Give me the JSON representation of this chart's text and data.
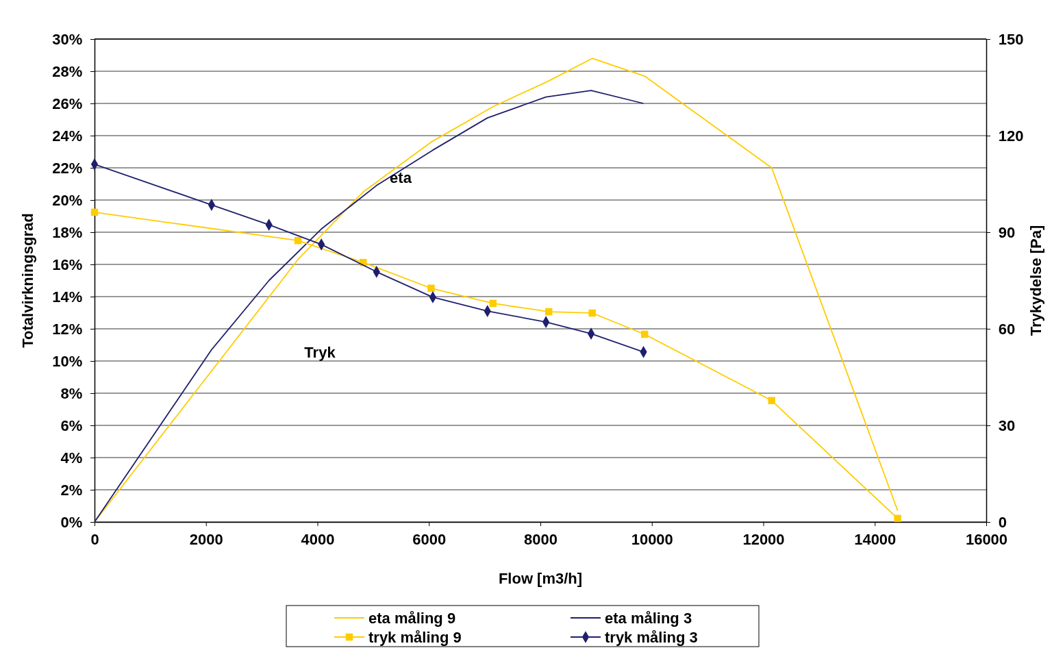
{
  "chart_data": {
    "type": "line",
    "xlabel": "Flow [m3/h]",
    "ylabel": "Totalvirkningsgrad",
    "y2label": "Trykydelse [Pa]",
    "xlim": [
      0,
      16000
    ],
    "xticks": [
      0,
      2000,
      4000,
      6000,
      8000,
      10000,
      12000,
      14000,
      16000
    ],
    "ylim": [
      0,
      30
    ],
    "yticks": [
      {
        "value": 0,
        "label": "0%"
      },
      {
        "value": 2,
        "label": "2%"
      },
      {
        "value": 4,
        "label": "4%"
      },
      {
        "value": 6,
        "label": "6%"
      },
      {
        "value": 8,
        "label": "8%"
      },
      {
        "value": 10,
        "label": "10%"
      },
      {
        "value": 12,
        "label": "12%"
      },
      {
        "value": 14,
        "label": "14%"
      },
      {
        "value": 16,
        "label": "16%"
      },
      {
        "value": 18,
        "label": "18%"
      },
      {
        "value": 20,
        "label": "20%"
      },
      {
        "value": 22,
        "label": "22%"
      },
      {
        "value": 24,
        "label": "24%"
      },
      {
        "value": 26,
        "label": "26%"
      },
      {
        "value": 28,
        "label": "28%"
      },
      {
        "value": 30,
        "label": "30%"
      }
    ],
    "y2lim": [
      0,
      150
    ],
    "y2ticks": [
      0,
      30,
      60,
      90,
      120,
      150
    ],
    "grid": "y",
    "legend": "bottom",
    "annotations": [
      "eta",
      "Tryk"
    ],
    "series": [
      {
        "name": "eta måling 9",
        "color": "#ffcc00",
        "marker": "none",
        "x": [
          0,
          3650,
          4820,
          6040,
          7150,
          8150,
          8930,
          9870,
          12150,
          14410
        ],
        "values": [
          0,
          16.3,
          20.5,
          23.6,
          25.8,
          27.4,
          28.8,
          27.7,
          22.0,
          0.7
        ]
      },
      {
        "name": "eta måling 3",
        "color": "#1f1f6e",
        "marker": "none",
        "x": [
          0,
          2100,
          3130,
          4070,
          5060,
          6070,
          7050,
          8100,
          8910,
          9850
        ],
        "values": [
          0,
          10.7,
          15.0,
          18.2,
          20.9,
          23.1,
          25.1,
          26.4,
          26.8,
          26.0
        ]
      },
      {
        "name": "tryk måling 9",
        "color": "#ffcc00",
        "marker": "square",
        "axis": "y2",
        "x": [
          0,
          3650,
          4820,
          6040,
          7150,
          8150,
          8930,
          9870,
          12150,
          14410
        ],
        "values": [
          96.2,
          87.4,
          80.6,
          72.6,
          67.9,
          65.3,
          64.9,
          58.3,
          37.7,
          1.1
        ]
      },
      {
        "name": "tryk måling 3",
        "color": "#1f1f6e",
        "marker": "diamond",
        "axis": "y2",
        "x": [
          0,
          2100,
          3130,
          4070,
          5060,
          6070,
          7050,
          8100,
          8910,
          9850
        ],
        "values": [
          111.1,
          98.5,
          92.3,
          86.2,
          77.7,
          69.8,
          65.5,
          62.1,
          58.5,
          52.8
        ]
      }
    ]
  }
}
